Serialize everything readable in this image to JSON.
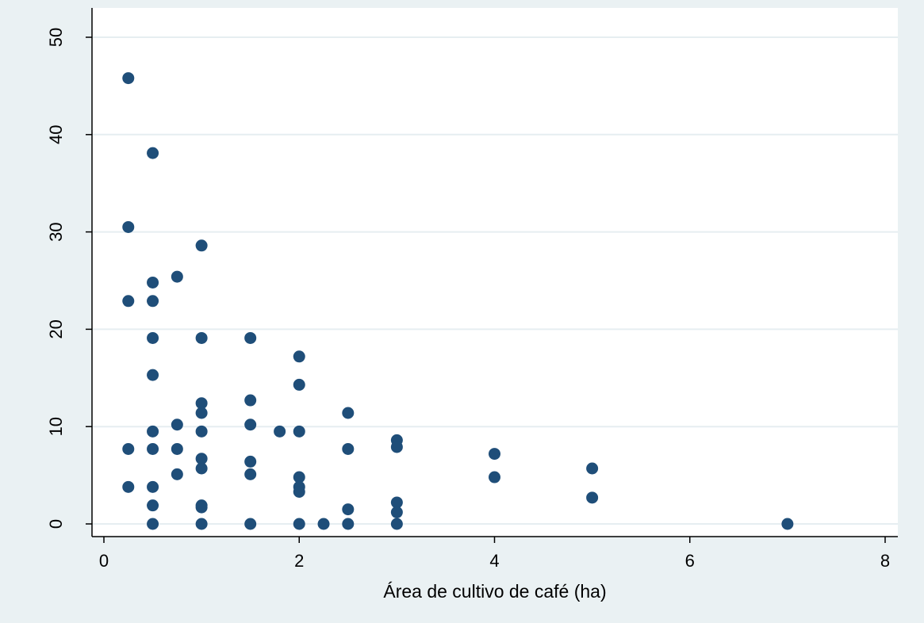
{
  "chart_data": {
    "type": "scatter",
    "title": "",
    "xlabel": "Área de cultivo de café (ha)",
    "ylabel": "",
    "xlim": [
      0,
      8
    ],
    "ylim": [
      0,
      50
    ],
    "xticks": [
      0,
      2,
      4,
      6,
      8
    ],
    "yticks": [
      0,
      10,
      20,
      30,
      40,
      50
    ],
    "xtick_labels": [
      "0",
      "2",
      "4",
      "6",
      "8"
    ],
    "ytick_labels": [
      "0",
      "10",
      "20",
      "30",
      "40",
      "50"
    ],
    "grid": "horizontal",
    "marker_color": "#1f4e79",
    "plot_background": "#ffffff",
    "page_background": "#eaf1f3",
    "points": [
      [
        0.25,
        45.8
      ],
      [
        0.25,
        30.5
      ],
      [
        0.25,
        22.9
      ],
      [
        0.25,
        7.7
      ],
      [
        0.25,
        3.8
      ],
      [
        0.5,
        38.1
      ],
      [
        0.5,
        24.8
      ],
      [
        0.5,
        22.9
      ],
      [
        0.5,
        19.1
      ],
      [
        0.5,
        15.3
      ],
      [
        0.5,
        9.5
      ],
      [
        0.5,
        7.7
      ],
      [
        0.5,
        3.8
      ],
      [
        0.5,
        1.9
      ],
      [
        0.5,
        0
      ],
      [
        0.75,
        25.4
      ],
      [
        0.75,
        10.2
      ],
      [
        0.75,
        7.7
      ],
      [
        0.75,
        5.1
      ],
      [
        1,
        28.6
      ],
      [
        1,
        19.1
      ],
      [
        1,
        12.4
      ],
      [
        1,
        11.4
      ],
      [
        1,
        9.5
      ],
      [
        1,
        6.7
      ],
      [
        1,
        5.7
      ],
      [
        1,
        1.9
      ],
      [
        1,
        1.7
      ],
      [
        1,
        0
      ],
      [
        1.5,
        19.1
      ],
      [
        1.5,
        12.7
      ],
      [
        1.5,
        10.2
      ],
      [
        1.5,
        6.4
      ],
      [
        1.5,
        5.1
      ],
      [
        1.5,
        0
      ],
      [
        1.8,
        9.5
      ],
      [
        2,
        17.2
      ],
      [
        2,
        14.3
      ],
      [
        2,
        9.5
      ],
      [
        2,
        4.8
      ],
      [
        2,
        3.8
      ],
      [
        2,
        3.3
      ],
      [
        2,
        0
      ],
      [
        2.25,
        0
      ],
      [
        2.5,
        11.4
      ],
      [
        2.5,
        7.7
      ],
      [
        2.5,
        1.5
      ],
      [
        2.5,
        0
      ],
      [
        3,
        8.6
      ],
      [
        3,
        7.9
      ],
      [
        3,
        2.2
      ],
      [
        3,
        1.2
      ],
      [
        3,
        0
      ],
      [
        4,
        7.2
      ],
      [
        4,
        4.8
      ],
      [
        5,
        5.7
      ],
      [
        5,
        2.7
      ],
      [
        7,
        0
      ]
    ]
  }
}
